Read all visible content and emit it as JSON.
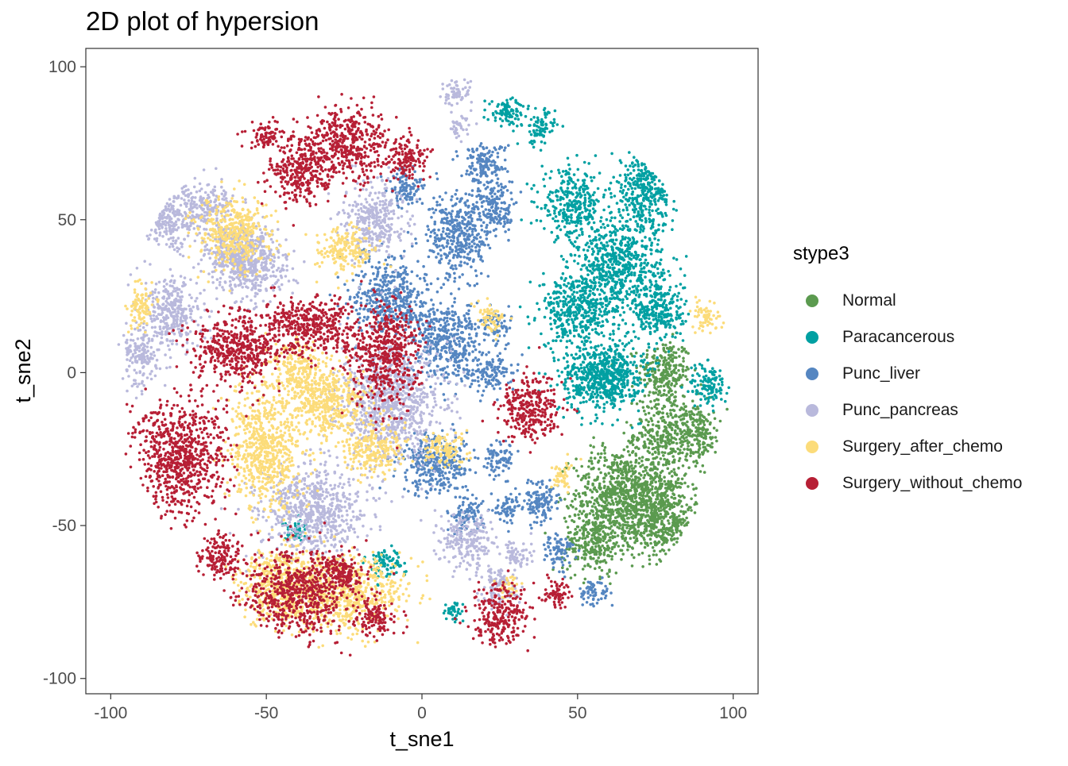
{
  "chart_data": {
    "type": "scatter",
    "title": "2D plot of hypersion",
    "xlabel": "t_sne1",
    "ylabel": "t_sne2",
    "xlim": [
      -108,
      108
    ],
    "ylim": [
      -105,
      106
    ],
    "xticks": [
      -100,
      -50,
      0,
      50,
      100
    ],
    "yticks": [
      -100,
      -50,
      0,
      50,
      100
    ],
    "grid": false,
    "legend_title": "stype3",
    "legend_position": "right",
    "series": [
      {
        "name": "Normal",
        "color": "#5B9A4F",
        "clusters": [
          [
            78,
            0,
            7,
            9
          ],
          [
            80,
            -20,
            10,
            10
          ],
          [
            62,
            -40,
            11,
            13
          ],
          [
            78,
            -50,
            10,
            9
          ],
          [
            74,
            -40,
            9,
            11
          ],
          [
            90,
            -20,
            4,
            6
          ],
          [
            55,
            -55,
            8,
            9
          ]
        ]
      },
      {
        "name": "Paracancerous",
        "color": "#00A0A2",
        "clusters": [
          [
            28,
            85,
            6,
            4
          ],
          [
            38,
            80,
            4,
            5
          ],
          [
            72,
            60,
            9,
            11
          ],
          [
            48,
            55,
            8,
            9
          ],
          [
            63,
            35,
            12,
            14
          ],
          [
            50,
            20,
            10,
            10
          ],
          [
            57,
            -2,
            11,
            9
          ],
          [
            76,
            20,
            7,
            9
          ],
          [
            92,
            -4,
            5,
            6
          ],
          [
            60,
            0,
            9,
            7
          ],
          [
            -40,
            -52,
            4,
            3
          ],
          [
            -12,
            -62,
            5,
            4
          ],
          [
            10,
            -78,
            3,
            3
          ]
        ]
      },
      {
        "name": "Punc_liver",
        "color": "#5586C1",
        "clusters": [
          [
            20,
            68,
            6,
            6
          ],
          [
            12,
            45,
            8,
            12
          ],
          [
            24,
            54,
            5,
            8
          ],
          [
            8,
            10,
            10,
            11
          ],
          [
            24,
            15,
            4,
            4
          ],
          [
            22,
            0,
            6,
            5
          ],
          [
            -10,
            25,
            10,
            11
          ],
          [
            5,
            -30,
            10,
            8
          ],
          [
            25,
            -28,
            4,
            5
          ],
          [
            28,
            -45,
            4,
            4
          ],
          [
            38,
            -42,
            5,
            6
          ],
          [
            44,
            -58,
            4,
            5
          ],
          [
            55,
            -72,
            4,
            4
          ],
          [
            14,
            -47,
            5,
            5
          ],
          [
            -5,
            60,
            5,
            5
          ]
        ]
      },
      {
        "name": "Punc_pancreas",
        "color": "#B9B9DC",
        "clusters": [
          [
            11,
            91,
            4,
            4
          ],
          [
            12,
            80,
            3,
            3
          ],
          [
            -85,
            50,
            12,
            8
          ],
          [
            -70,
            55,
            8,
            6
          ],
          [
            -55,
            35,
            10,
            10
          ],
          [
            -80,
            20,
            8,
            10
          ],
          [
            -90,
            5,
            5,
            8
          ],
          [
            -15,
            50,
            8,
            10
          ],
          [
            -10,
            -10,
            14,
            15
          ],
          [
            -35,
            -45,
            14,
            12
          ],
          [
            15,
            -55,
            7,
            8
          ],
          [
            25,
            -70,
            5,
            5
          ],
          [
            -60,
            40,
            8,
            8
          ],
          [
            30,
            -60,
            4,
            4
          ]
        ]
      },
      {
        "name": "Surgery_after_chemo",
        "color": "#FCDC7A",
        "clusters": [
          [
            -25,
            40,
            8,
            6
          ],
          [
            -60,
            45,
            10,
            10
          ],
          [
            -30,
            -10,
            10,
            10
          ],
          [
            -50,
            -25,
            10,
            16
          ],
          [
            -25,
            -72,
            16,
            10
          ],
          [
            -45,
            -70,
            12,
            10
          ],
          [
            7,
            -25,
            6,
            5
          ],
          [
            -15,
            -25,
            8,
            7
          ],
          [
            92,
            18,
            4,
            4
          ],
          [
            -90,
            22,
            4,
            6
          ],
          [
            22,
            18,
            4,
            4
          ],
          [
            28,
            -70,
            3,
            3
          ],
          [
            45,
            -34,
            3,
            4
          ],
          [
            -40,
            0,
            8,
            8
          ]
        ]
      },
      {
        "name": "Surgery_without_chemo",
        "color": "#B71F35",
        "clusters": [
          [
            -25,
            75,
            12,
            10
          ],
          [
            -40,
            65,
            8,
            9
          ],
          [
            -5,
            70,
            6,
            6
          ],
          [
            -50,
            78,
            5,
            4
          ],
          [
            -60,
            8,
            12,
            10
          ],
          [
            -35,
            15,
            13,
            8
          ],
          [
            -12,
            5,
            9,
            14
          ],
          [
            -78,
            -28,
            12,
            16
          ],
          [
            35,
            -12,
            8,
            9
          ],
          [
            -40,
            -72,
            14,
            12
          ],
          [
            25,
            -79,
            8,
            8
          ],
          [
            43,
            -72,
            4,
            4
          ],
          [
            -65,
            -60,
            6,
            6
          ],
          [
            -25,
            -65,
            6,
            5
          ],
          [
            -15,
            -80,
            6,
            5
          ]
        ]
      }
    ]
  }
}
